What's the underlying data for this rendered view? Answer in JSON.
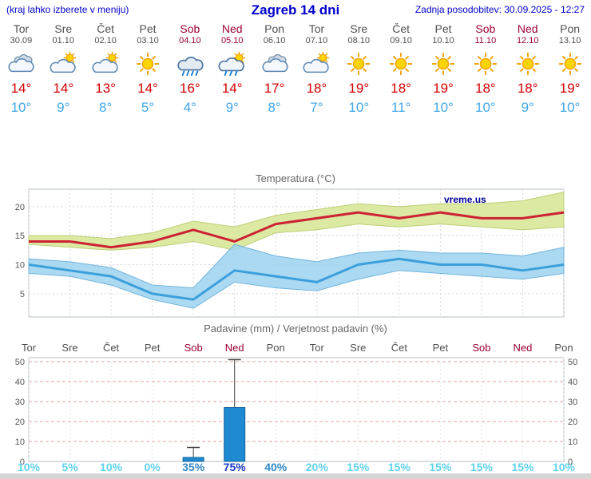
{
  "header": {
    "menu_hint": "(kraj lahko izberete v meniju)",
    "title": "Zagreb 14 dni",
    "last_update": "Zadnja posodobitev: 30.09.2025 - 12:27"
  },
  "colors": {
    "header_blue": "#0000cc",
    "weekday": "#4f4f4f",
    "weekend": "#9c0033",
    "tmax": "#d40000",
    "tmin": "#3fa6e8",
    "temp_max_line": "#cc2233",
    "temp_min_line": "#3b9fdc",
    "temp_max_band": "#dce9a2",
    "temp_max_band_edge": "#bccf78",
    "temp_min_band": "#9ed2f0",
    "temp_min_band_edge": "#6fb4dd",
    "bar_fill": "#1f8ad2",
    "bar_edge": "#11619c",
    "pop_low": "#5fd2ee",
    "pop_mid": "#2f86c8",
    "pop_high": "#1638c8",
    "watermark_blue": "#000099"
  },
  "forecast": {
    "days": [
      {
        "name": "Tor",
        "date": "30.09",
        "weekend": false,
        "icon": "cloudy",
        "tmax": "14°",
        "tmin": "10°"
      },
      {
        "name": "Sre",
        "date": "01.10",
        "weekend": false,
        "icon": "sun-cloud",
        "tmax": "14°",
        "tmin": "9°"
      },
      {
        "name": "Čet",
        "date": "02.10",
        "weekend": false,
        "icon": "sun-cloud",
        "tmax": "13°",
        "tmin": "8°"
      },
      {
        "name": "Pet",
        "date": "03.10",
        "weekend": false,
        "icon": "sunny",
        "tmax": "14°",
        "tmin": "5°"
      },
      {
        "name": "Sob",
        "date": "04.10",
        "weekend": true,
        "icon": "rain",
        "tmax": "16°",
        "tmin": "4°"
      },
      {
        "name": "Ned",
        "date": "05.10",
        "weekend": true,
        "icon": "sun-rain",
        "tmax": "14°",
        "tmin": "9°"
      },
      {
        "name": "Pon",
        "date": "06.10",
        "weekend": false,
        "icon": "cloudy",
        "tmax": "17°",
        "tmin": "8°"
      },
      {
        "name": "Tor",
        "date": "07.10",
        "weekend": false,
        "icon": "sun-cloud",
        "tmax": "18°",
        "tmin": "7°"
      },
      {
        "name": "Sre",
        "date": "08.10",
        "weekend": false,
        "icon": "sunny",
        "tmax": "19°",
        "tmin": "10°"
      },
      {
        "name": "Čet",
        "date": "09.10",
        "weekend": false,
        "icon": "sunny",
        "tmax": "18°",
        "tmin": "11°"
      },
      {
        "name": "Pet",
        "date": "10.10",
        "weekend": false,
        "icon": "sunny",
        "tmax": "19°",
        "tmin": "10°"
      },
      {
        "name": "Sob",
        "date": "11.10",
        "weekend": true,
        "icon": "sunny",
        "tmax": "18°",
        "tmin": "10°"
      },
      {
        "name": "Ned",
        "date": "12.10",
        "weekend": true,
        "icon": "sunny",
        "tmax": "18°",
        "tmin": "9°"
      },
      {
        "name": "Pon",
        "date": "13.10",
        "weekend": false,
        "icon": "sunny",
        "tmax": "19°",
        "tmin": "10°"
      }
    ]
  },
  "chart_data": [
    {
      "type": "line",
      "title": "Temperatura (°C)",
      "watermark": "vreme.us",
      "x_labels": [
        "Tor",
        "Sre",
        "Čet",
        "Pet",
        "Sob",
        "Ned",
        "Pon",
        "Tor",
        "Sre",
        "Čet",
        "Pet",
        "Sob",
        "Ned",
        "Pon"
      ],
      "ylim": [
        1,
        23
      ],
      "yticks": [
        5,
        10,
        15,
        20
      ],
      "grid": true,
      "series": [
        {
          "name": "max_temp",
          "values": [
            14,
            14,
            13,
            14,
            16,
            14,
            17,
            18,
            19,
            18,
            19,
            18,
            18,
            19
          ]
        },
        {
          "name": "min_temp",
          "values": [
            10,
            9,
            8,
            5,
            4,
            9,
            8,
            7,
            10,
            11,
            10,
            10,
            9,
            10
          ]
        },
        {
          "name": "max_band_high",
          "values": [
            15,
            15,
            14.5,
            15.5,
            17.5,
            16.5,
            18.5,
            19.5,
            20.5,
            20,
            20.5,
            20.5,
            21,
            22.5
          ]
        },
        {
          "name": "max_band_low",
          "values": [
            13.5,
            13,
            12.5,
            13,
            14,
            12.5,
            15.5,
            16,
            17,
            16.5,
            17,
            16.5,
            16,
            16.5
          ]
        },
        {
          "name": "min_band_high",
          "values": [
            11,
            10.5,
            9.5,
            6.5,
            6,
            13.5,
            11.5,
            10.5,
            12,
            12.5,
            12,
            12,
            11.5,
            13
          ]
        },
        {
          "name": "min_band_low",
          "values": [
            8.5,
            8,
            6.5,
            4,
            2.5,
            7,
            6,
            5.5,
            7.5,
            9,
            8.5,
            8,
            7.5,
            8.5
          ]
        }
      ]
    },
    {
      "type": "bar",
      "title": "Padavine (mm) / Verjetnost padavin (%)",
      "categories": [
        "Tor",
        "Sre",
        "Čet",
        "Pet",
        "Sob",
        "Ned",
        "Pon",
        "Tor",
        "Sre",
        "Čet",
        "Pet",
        "Sob",
        "Ned",
        "Pon"
      ],
      "values": [
        0,
        0,
        0,
        0,
        2,
        27,
        0,
        0,
        0,
        0,
        0,
        0,
        0,
        0
      ],
      "whiskers": [
        0,
        0,
        0,
        0,
        7,
        51,
        0,
        0,
        0,
        0,
        0,
        0,
        0,
        0
      ],
      "probabilities": [
        "10%",
        "5%",
        "10%",
        "0%",
        "35%",
        "75%",
        "40%",
        "20%",
        "15%",
        "15%",
        "15%",
        "15%",
        "15%",
        "10%"
      ],
      "ylim": [
        0,
        52
      ],
      "yticks": [
        0,
        10,
        20,
        30,
        40,
        50
      ],
      "grid": true
    }
  ]
}
